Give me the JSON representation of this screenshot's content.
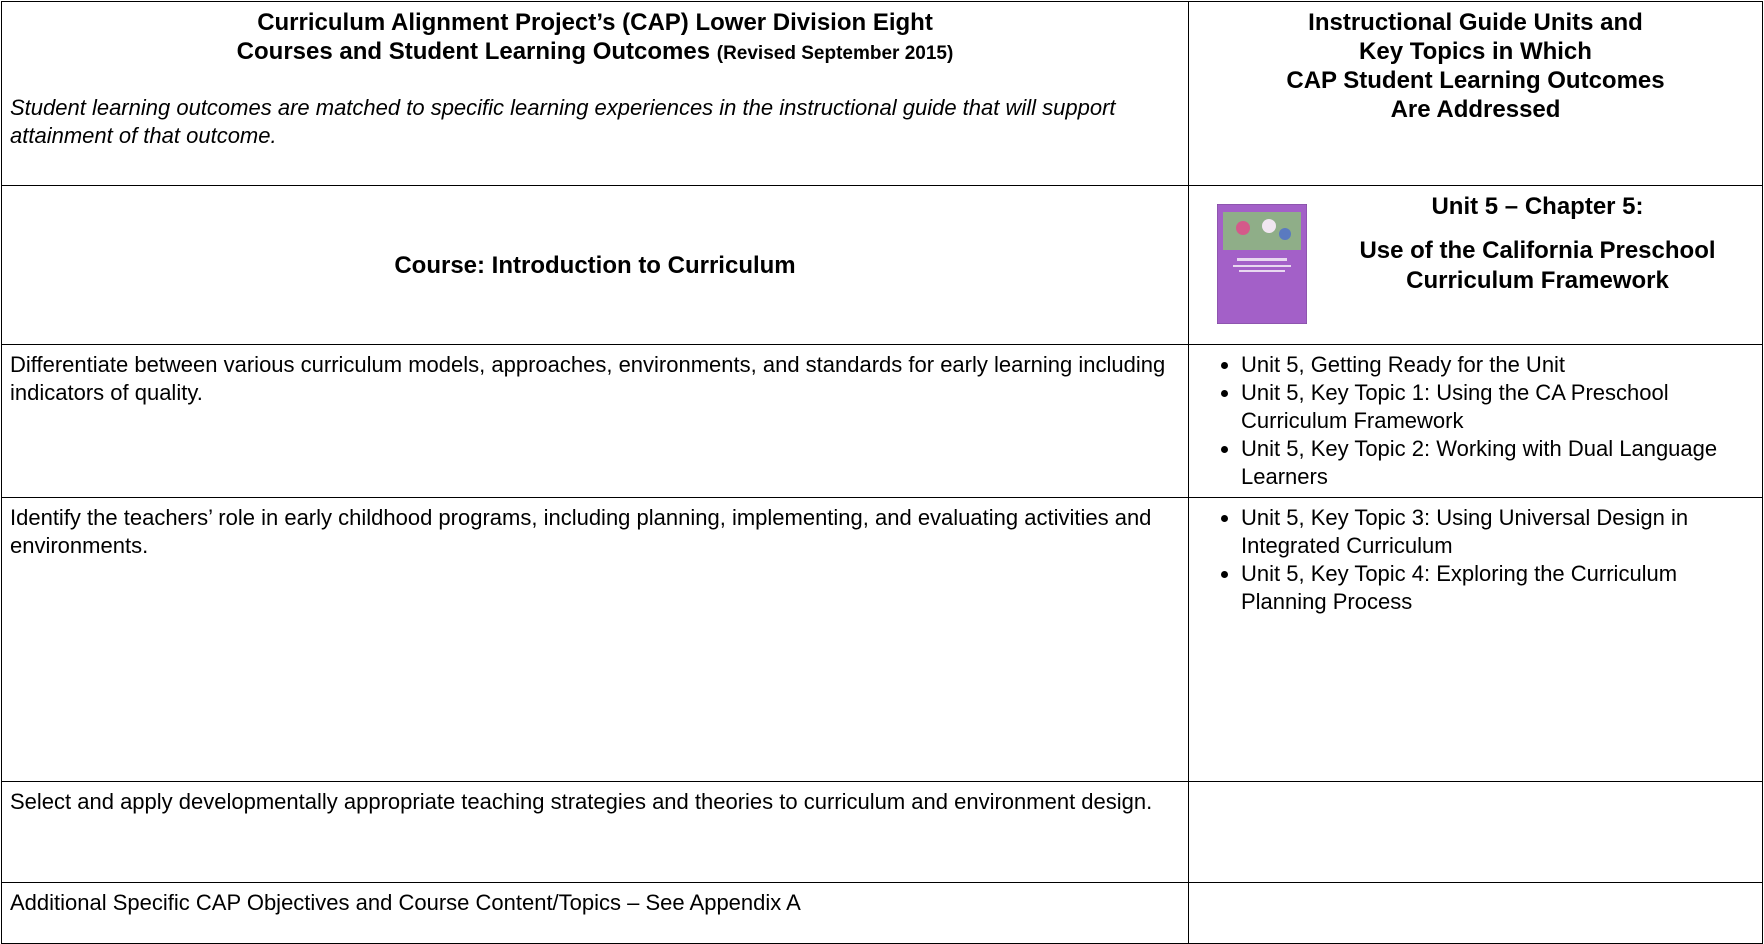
{
  "header": {
    "left_title_lines": [
      "Curriculum Alignment Project’s (CAP) Lower Division Eight",
      "Courses and Student Learning Outcomes"
    ],
    "revised": "(Revised September 2015)",
    "description": "Student learning outcomes are matched to specific learning experiences in the instructional guide that will support attainment of that outcome.",
    "right_title_lines": [
      "Instructional Guide Units and",
      "Key Topics in Which",
      "CAP Student Learning Outcomes",
      "Are Addressed"
    ]
  },
  "course": {
    "title": "Course:  Introduction to Curriculum",
    "unit_heading": "Unit 5 – Chapter 5:",
    "unit_subtitle": "Use of the California Preschool Curriculum Framework"
  },
  "rows": [
    {
      "outcome": "Differentiate between various curriculum models, approaches, environments, and standards for early learning including indicators of quality.",
      "topics": [
        "Unit 5, Getting Ready for the Unit",
        "Unit 5, Key Topic 1: Using the CA Preschool Curriculum Framework",
        "Unit 5, Key Topic 2: Working with Dual Language Learners"
      ]
    },
    {
      "outcome": "Identify the teachers’ role in early childhood programs, including planning, implementing, and evaluating activities and environments.",
      "topics": [
        "Unit 5, Key Topic 3: Using Universal Design in Integrated Curriculum",
        "Unit 5, Key Topic 4: Exploring the Curriculum Planning Process"
      ]
    },
    {
      "outcome": "Select and apply developmentally appropriate teaching strategies and theories to curriculum and environment design.",
      "topics": []
    },
    {
      "outcome": "Additional Specific CAP Objectives and Course Content/Topics – See Appendix A",
      "topics": []
    }
  ]
}
